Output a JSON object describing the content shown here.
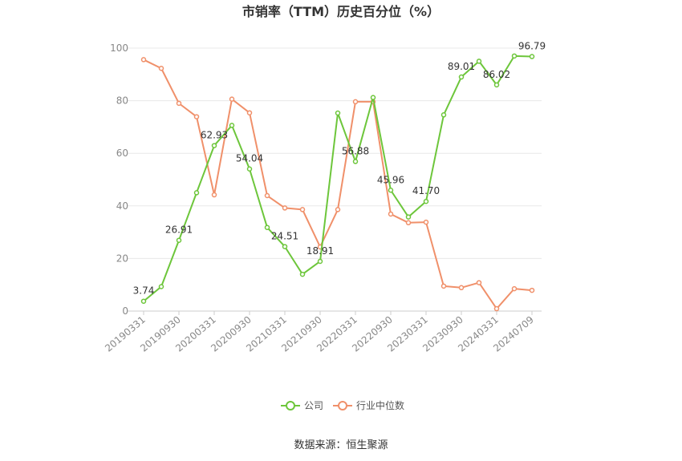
{
  "chart_data": {
    "type": "line",
    "title": "市销率（TTM）历史百分位（%）",
    "xlabel": "",
    "ylabel": "",
    "ylim": [
      0,
      100
    ],
    "yticks": [
      0,
      20,
      40,
      60,
      80,
      100
    ],
    "grid": true,
    "legend_position": "bottom",
    "categories": [
      "20190331",
      "20190630",
      "20190930",
      "20191231",
      "20200331",
      "20200630",
      "20200930",
      "20201231",
      "20210331",
      "20210630",
      "20210930",
      "20211231",
      "20220331",
      "20220630",
      "20220930",
      "20221231",
      "20230331",
      "20230630",
      "20230930",
      "20231231",
      "20240331",
      "20240630",
      "20240709"
    ],
    "tick_labels": [
      "20190331",
      "20190930",
      "20200331",
      "20200930",
      "20210331",
      "20210930",
      "20220331",
      "20220930",
      "20230331",
      "20230930",
      "20240331",
      "20240709"
    ],
    "series": [
      {
        "name": "公司",
        "color": "#6dc63b",
        "values": [
          3.74,
          9.3,
          26.91,
          45.0,
          62.93,
          70.6,
          54.04,
          31.8,
          24.51,
          14.0,
          18.91,
          75.3,
          56.88,
          81.2,
          45.96,
          35.8,
          41.7,
          74.6,
          89.01,
          95.0,
          86.02,
          97.0,
          96.79
        ]
      },
      {
        "name": "行业中位数",
        "color": "#f0906a",
        "values": [
          95.6,
          92.3,
          79.0,
          73.9,
          44.2,
          80.6,
          75.4,
          43.9,
          39.2,
          38.6,
          24.4,
          38.6,
          79.6,
          79.6,
          36.9,
          33.6,
          33.8,
          9.5,
          8.9,
          10.8,
          0.9,
          8.5,
          7.9
        ]
      }
    ],
    "data_labels": [
      {
        "index": 0,
        "text": "3.74"
      },
      {
        "index": 2,
        "text": "26.91"
      },
      {
        "index": 4,
        "text": "62.93"
      },
      {
        "index": 6,
        "text": "54.04"
      },
      {
        "index": 8,
        "text": "24.51"
      },
      {
        "index": 10,
        "text": "18.91"
      },
      {
        "index": 12,
        "text": "56.88"
      },
      {
        "index": 14,
        "text": "45.96"
      },
      {
        "index": 16,
        "text": "41.70"
      },
      {
        "index": 18,
        "text": "89.01"
      },
      {
        "index": 20,
        "text": "86.02"
      },
      {
        "index": 22,
        "text": "96.79"
      }
    ]
  },
  "source": "数据来源：恒生聚源"
}
